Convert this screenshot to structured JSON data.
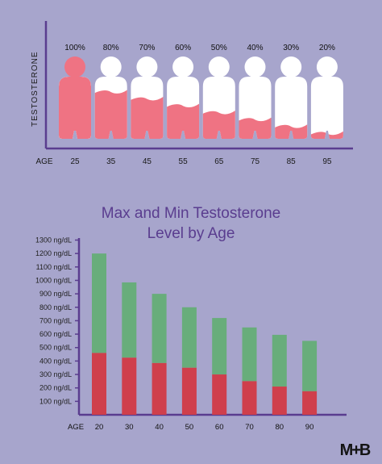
{
  "top_chart": {
    "ylabel": "TESTOSTERONE",
    "xlabel": "AGE",
    "colors": {
      "fill": "#ef7383",
      "empty": "#ffffff",
      "axis": "#5a3d8f"
    }
  },
  "chart_data": [
    {
      "type": "bar",
      "ylabel": "TESTOSTERONE",
      "xlabel": "AGE",
      "categories": [
        "25",
        "35",
        "45",
        "55",
        "65",
        "75",
        "85",
        "95"
      ],
      "values": [
        100,
        80,
        70,
        60,
        50,
        40,
        30,
        20
      ],
      "value_labels": [
        "100%",
        "80%",
        "70%",
        "60%",
        "50%",
        "40%",
        "30%",
        "20%"
      ],
      "ylim": [
        0,
        100
      ]
    },
    {
      "type": "bar",
      "title": "Max and Min Testosterone Level by Age",
      "title_lines": [
        "Max and Min Testosterone",
        "Level by Age"
      ],
      "xlabel": "AGE",
      "categories": [
        "20",
        "30",
        "40",
        "50",
        "60",
        "70",
        "80",
        "90"
      ],
      "series": [
        {
          "values": [
            460,
            425,
            385,
            350,
            300,
            250,
            210,
            175
          ],
          "color": "#cf3f4c"
        },
        {
          "values": [
            1200,
            985,
            900,
            800,
            720,
            650,
            595,
            550
          ],
          "color": "#68ad7b"
        }
      ],
      "ylim": [
        0,
        1300
      ],
      "yticks": [
        {
          "value": 100,
          "label": "100 ng/dL"
        },
        {
          "value": 200,
          "label": "200 ng/dL"
        },
        {
          "value": 300,
          "label": "300 ng/dL"
        },
        {
          "value": 400,
          "label": "400 ng/dL"
        },
        {
          "value": 500,
          "label": "500 ng/dL"
        },
        {
          "value": 600,
          "label": "600 ng/dL"
        },
        {
          "value": 700,
          "label": "700 ng/dL"
        },
        {
          "value": 800,
          "label": "800 ng/dL"
        },
        {
          "value": 900,
          "label": "900 ng/dL"
        },
        {
          "value": 1000,
          "label": "1000 ng/dL"
        },
        {
          "value": 1100,
          "label": "1100 ng/dL"
        },
        {
          "value": 1200,
          "label": "1200 ng/dL"
        },
        {
          "value": 1300,
          "label": "1300 ng/dL"
        }
      ],
      "axis_color": "#5a3d8f",
      "grid": false
    }
  ],
  "logo": {
    "text": "M+B"
  }
}
